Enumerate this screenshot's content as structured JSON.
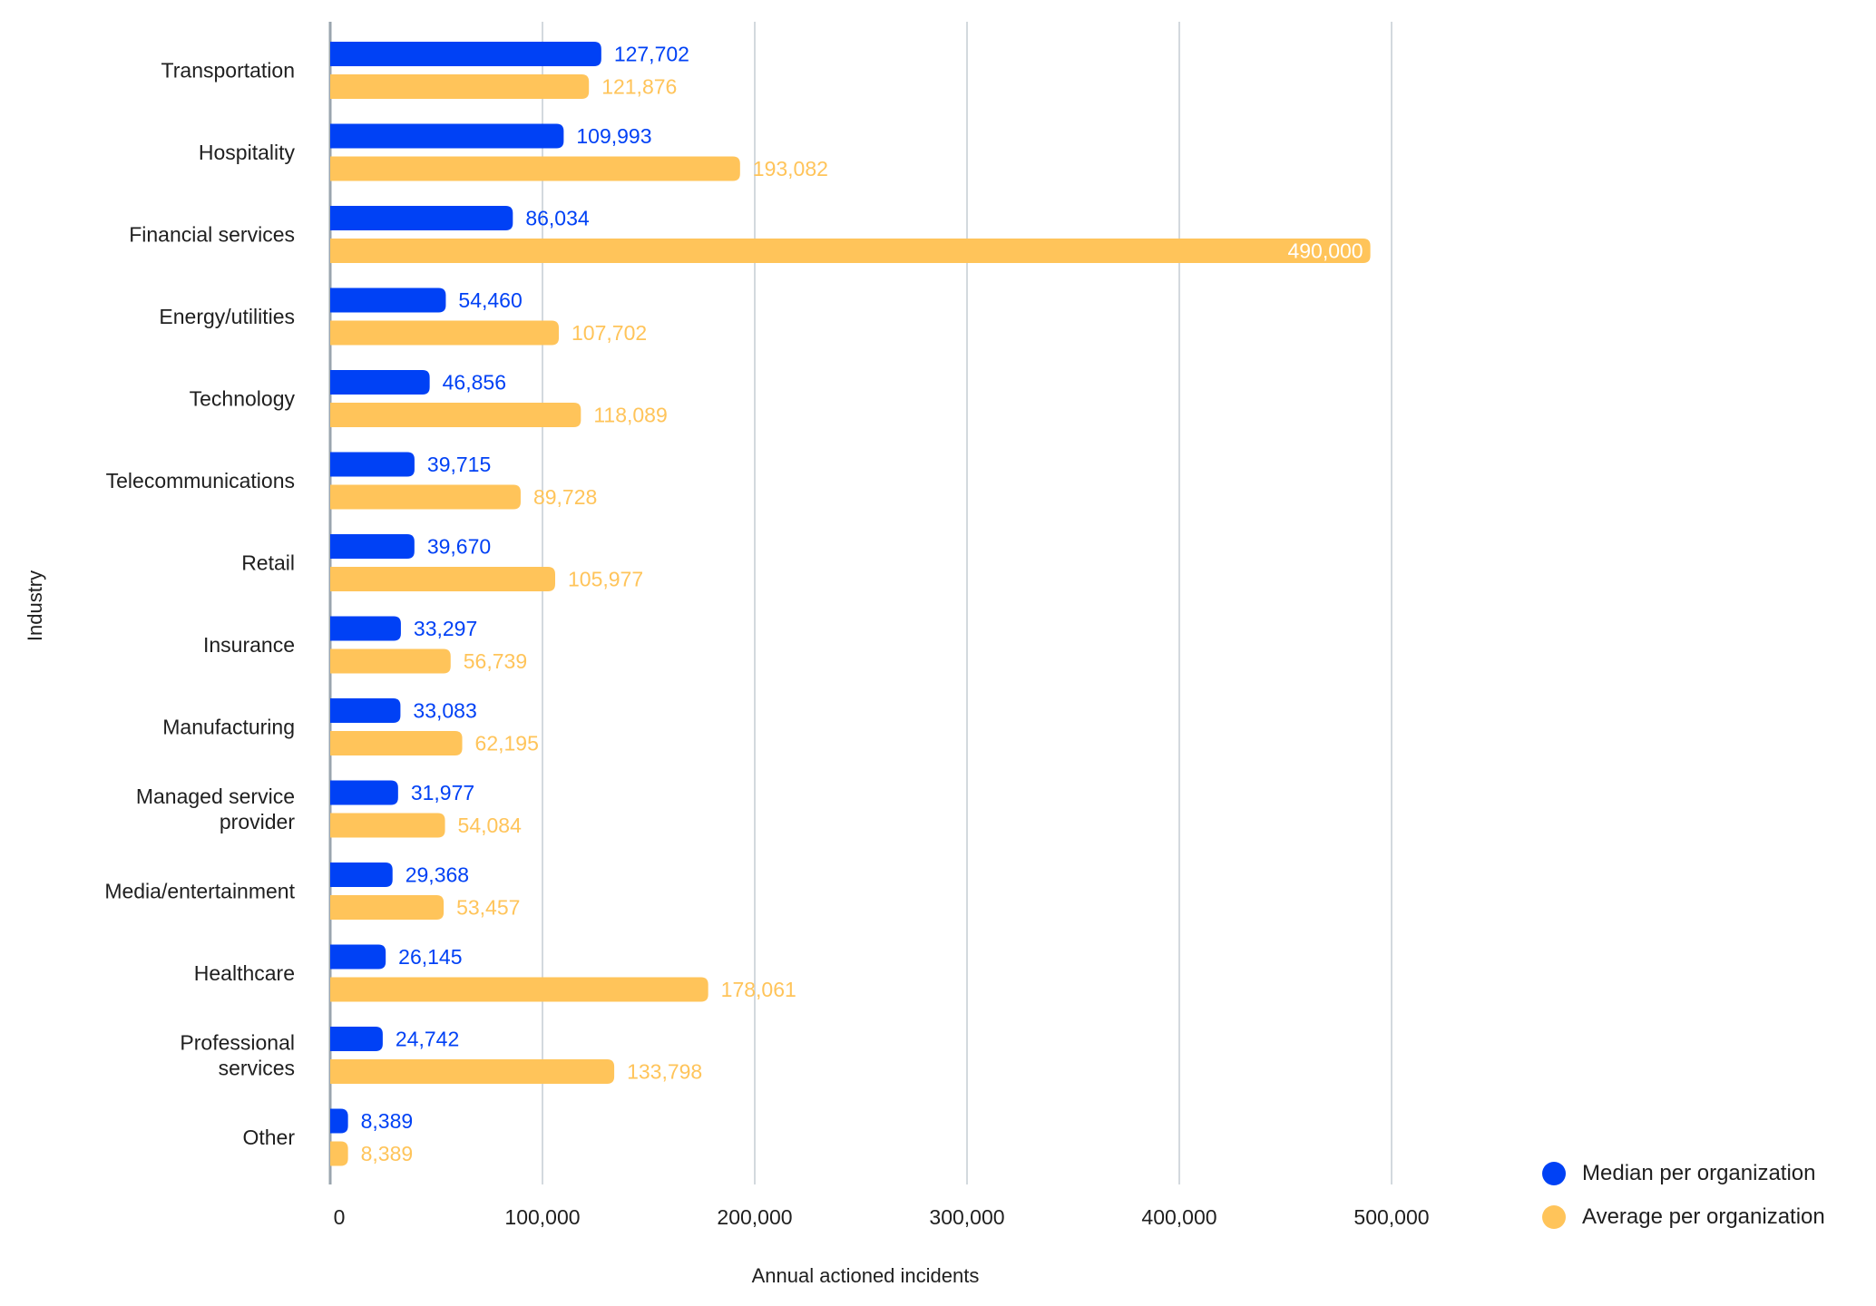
{
  "chart_data": {
    "type": "bar",
    "orientation": "horizontal",
    "title": "",
    "xlabel": "Annual actioned incidents",
    "ylabel": "Industry",
    "xlim": [
      0,
      500000
    ],
    "xticks": [
      0,
      100000,
      200000,
      300000,
      400000,
      500000
    ],
    "xtick_labels": [
      "0",
      "100,000",
      "200,000",
      "300,000",
      "400,000",
      "500,000"
    ],
    "grid": "vertical",
    "legend_position": "bottom-right",
    "categories": [
      [
        "Transportation"
      ],
      [
        "Hospitality"
      ],
      [
        "Financial services"
      ],
      [
        "Energy/utilities"
      ],
      [
        "Technology"
      ],
      [
        "Telecommunications"
      ],
      [
        "Retail"
      ],
      [
        "Insurance"
      ],
      [
        "Manufacturing"
      ],
      [
        "Managed service",
        "provider"
      ],
      [
        "Media/entertainment"
      ],
      [
        "Healthcare"
      ],
      [
        "Professional",
        "services"
      ],
      [
        "Other"
      ]
    ],
    "series": [
      {
        "name": "Median per organization",
        "color": "#0041F5",
        "label_color": "#0041F5",
        "values": [
          127702,
          109993,
          86034,
          54460,
          46856,
          39715,
          39670,
          33297,
          33083,
          31977,
          29368,
          26145,
          24742,
          8389
        ],
        "labels": [
          "127,702",
          "109,993",
          "86,034",
          "54,460",
          "46,856",
          "39,715",
          "39,670",
          "33,297",
          "33,083",
          "31,977",
          "29,368",
          "26,145",
          "24,742",
          "8,389"
        ]
      },
      {
        "name": "Average per organization",
        "color": "#FFC45A",
        "label_color": "#FFC45A",
        "values": [
          121876,
          193082,
          490000,
          107702,
          118089,
          89728,
          105977,
          56739,
          62195,
          54084,
          53457,
          178061,
          133798,
          8389
        ],
        "labels": [
          "121,876",
          "193,082",
          "490,000",
          "107,702",
          "118,089",
          "89,728",
          "105,977",
          "56,739",
          "62,195",
          "54,084",
          "53,457",
          "178,061",
          "133,798",
          "8,389"
        ],
        "inside_label_indices": [
          2
        ],
        "inside_label_color": "#FFFFFF"
      }
    ]
  },
  "colors": {
    "axis": "#9AA5AE",
    "grid": "#D3D9DE",
    "text": "#1F1F1F"
  }
}
